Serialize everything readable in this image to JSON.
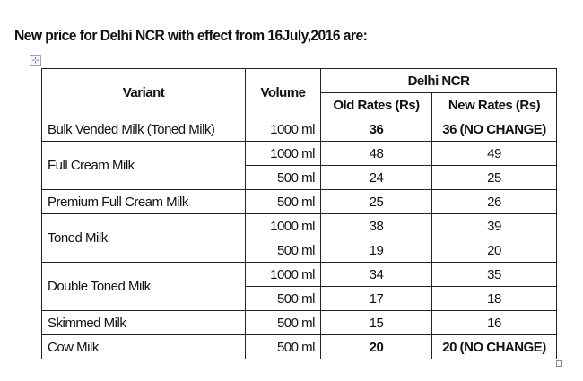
{
  "title": "New price for Delhi NCR with effect from 16July,2016 are:",
  "table": {
    "headers": {
      "variant": "Variant",
      "volume": "Volume",
      "region": "Delhi NCR",
      "old_rates": "Old Rates (Rs)",
      "new_rates": "New Rates (Rs)"
    },
    "groups": [
      {
        "variant": "Bulk Vended Milk (Toned Milk)",
        "rows": [
          {
            "volume": "1000 ml",
            "old": "36",
            "new": "36 (NO CHANGE)",
            "bold": true
          }
        ]
      },
      {
        "variant": "Full Cream Milk",
        "rows": [
          {
            "volume": "1000 ml",
            "old": "48",
            "new": "49"
          },
          {
            "volume": "500 ml",
            "old": "24",
            "new": "25"
          }
        ]
      },
      {
        "variant": "Premium Full Cream Milk",
        "rows": [
          {
            "volume": "500 ml",
            "old": "25",
            "new": "26"
          }
        ]
      },
      {
        "variant": "Toned Milk",
        "rows": [
          {
            "volume": "1000 ml",
            "old": "38",
            "new": "39"
          },
          {
            "volume": "500 ml",
            "old": "19",
            "new": "20"
          }
        ]
      },
      {
        "variant": "Double Toned Milk",
        "rows": [
          {
            "volume": "1000 ml",
            "old": "34",
            "new": "35"
          },
          {
            "volume": "500 ml",
            "old": "17",
            "new": "18"
          }
        ]
      },
      {
        "variant": "Skimmed Milk",
        "rows": [
          {
            "volume": "500 ml",
            "old": "15",
            "new": "16"
          }
        ]
      },
      {
        "variant": "Cow Milk",
        "rows": [
          {
            "volume": "500 ml",
            "old": "20",
            "new": "20 (NO CHANGE)",
            "bold": true
          }
        ]
      }
    ]
  },
  "icons": {
    "move_handle": "⊹"
  }
}
